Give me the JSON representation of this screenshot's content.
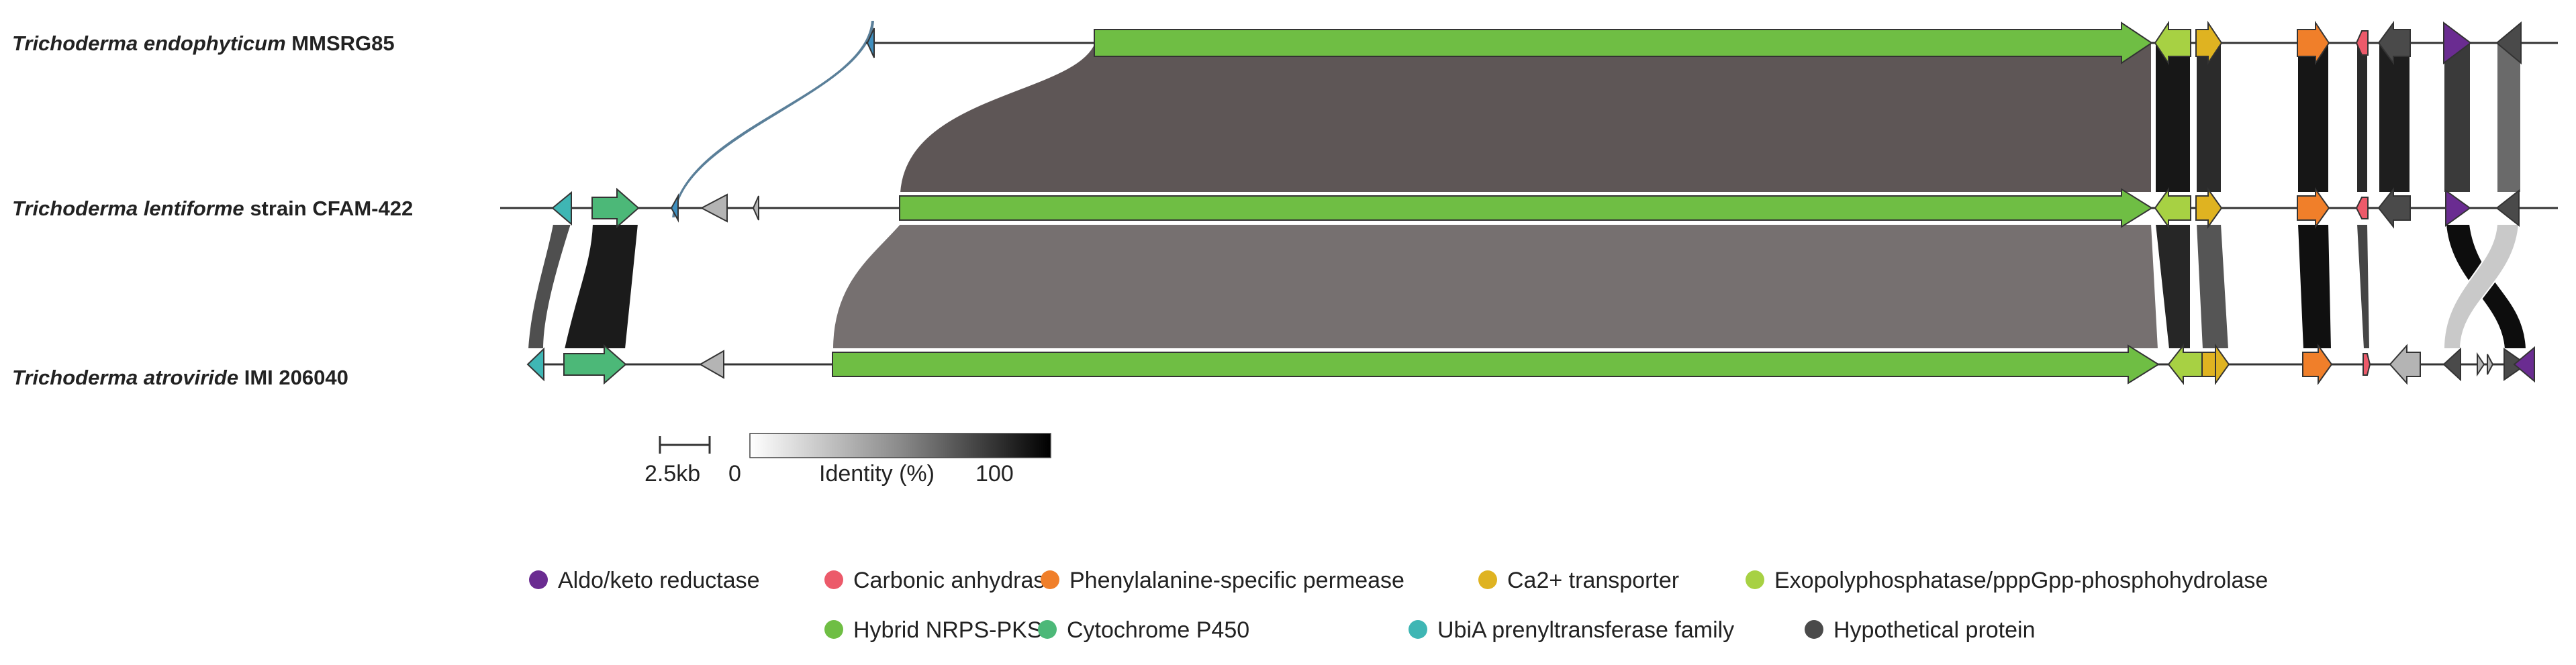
{
  "tracks": [
    {
      "species": "Trichoderma endophyticum",
      "strain": "MMSRG85"
    },
    {
      "species": "Trichoderma lentiforme",
      "strain": "strain CFAM-422"
    },
    {
      "species": "Trichoderma atroviride",
      "strain": "IMI 206040"
    }
  ],
  "scale": {
    "label": "2.5kb",
    "identity_label": "Identity (%)",
    "identity_min": "0",
    "identity_max": "100"
  },
  "legend": [
    {
      "label": "Aldo/keto reductase",
      "color": "#6a2c91"
    },
    {
      "label": "Carbonic anhydrase",
      "color": "#ec5a6a"
    },
    {
      "label": "Phenylalanine-specific permease",
      "color": "#f07f2a"
    },
    {
      "label": "Ca2+ transporter",
      "color": "#dfb321"
    },
    {
      "label": "Exopolyphosphatase/pppGpp-phosphohydrolase",
      "color": "#a7d143"
    },
    {
      "label": "Hybrid NRPS-PKS",
      "color": "#6fbe44"
    },
    {
      "label": "Cytochrome P450",
      "color": "#4cb878"
    },
    {
      "label": "UbiA prenyltransferase family",
      "color": "#3fb6b4"
    },
    {
      "label": "Hypothetical protein",
      "color": "#4a4a4a"
    }
  ]
}
